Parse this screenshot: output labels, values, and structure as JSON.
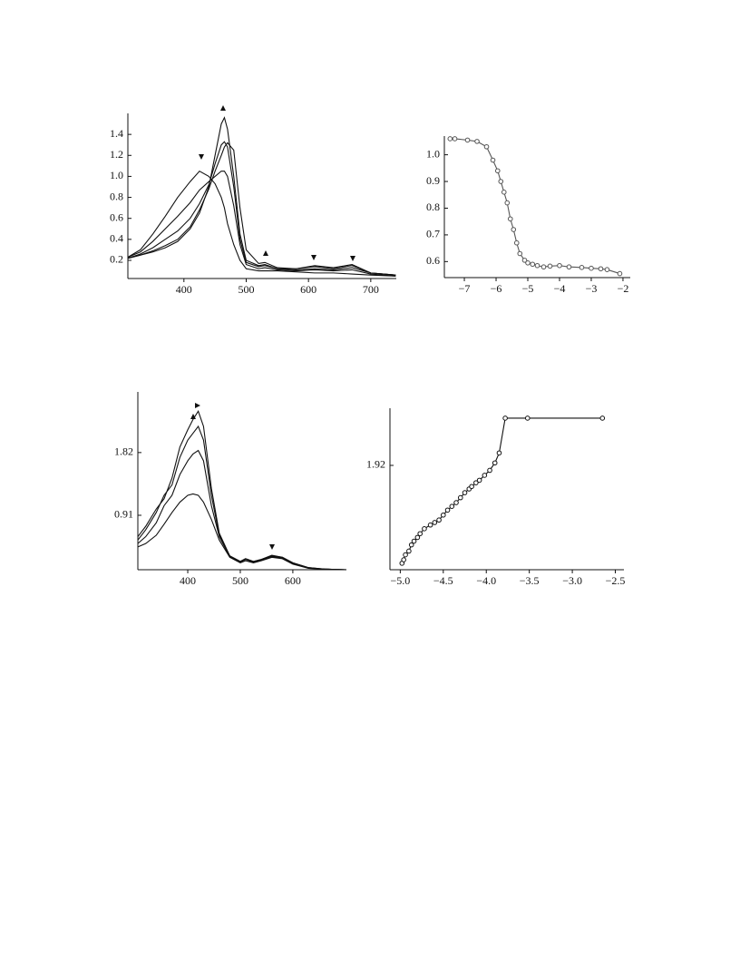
{
  "chart_data": [
    {
      "type": "line",
      "x": [
        310,
        330,
        350,
        370,
        390,
        410,
        425,
        440,
        450,
        460,
        465,
        470,
        480,
        490,
        500,
        520,
        530,
        550,
        580,
        610,
        640,
        670,
        700,
        740
      ],
      "series": [
        {
          "color": "#111111",
          "values": [
            0.23,
            0.3,
            0.45,
            0.62,
            0.8,
            0.95,
            1.05,
            1.0,
            0.93,
            0.8,
            0.7,
            0.55,
            0.35,
            0.2,
            0.12,
            0.1,
            0.1,
            0.1,
            0.09,
            0.08,
            0.08,
            0.07,
            0.06,
            0.05
          ]
        },
        {
          "color": "#111111",
          "values": [
            0.23,
            0.28,
            0.38,
            0.5,
            0.62,
            0.75,
            0.87,
            0.95,
            1.0,
            1.05,
            1.05,
            1.0,
            0.72,
            0.35,
            0.16,
            0.12,
            0.13,
            0.11,
            0.1,
            0.11,
            0.1,
            0.11,
            0.07,
            0.05
          ]
        },
        {
          "color": "#111111",
          "values": [
            0.22,
            0.26,
            0.32,
            0.4,
            0.48,
            0.6,
            0.74,
            0.92,
            1.12,
            1.3,
            1.33,
            1.28,
            0.9,
            0.4,
            0.18,
            0.14,
            0.15,
            0.12,
            0.11,
            0.12,
            0.11,
            0.13,
            0.08,
            0.06
          ]
        },
        {
          "color": "#111111",
          "values": [
            0.22,
            0.25,
            0.29,
            0.34,
            0.4,
            0.52,
            0.68,
            0.88,
            1.05,
            1.2,
            1.28,
            1.32,
            1.25,
            0.7,
            0.3,
            0.17,
            0.18,
            0.13,
            0.12,
            0.15,
            0.13,
            0.16,
            0.08,
            0.06
          ]
        },
        {
          "color": "#111111",
          "values": [
            0.22,
            0.25,
            0.28,
            0.32,
            0.38,
            0.5,
            0.65,
            0.9,
            1.2,
            1.5,
            1.56,
            1.45,
            1.0,
            0.45,
            0.2,
            0.15,
            0.16,
            0.12,
            0.12,
            0.14,
            0.12,
            0.15,
            0.08,
            0.06
          ]
        }
      ],
      "xlim": [
        310,
        741
      ],
      "xticks": [
        400,
        500,
        600,
        700
      ],
      "ylim": [
        0.027,
        1.6
      ],
      "yticks": [
        0.2,
        0.4,
        0.6,
        0.8,
        {
          "value": 1,
          "label": "1.0"
        },
        1.2,
        1.4
      ]
    },
    {
      "type": "line",
      "marker": "circle",
      "x": [
        -7.45,
        -7.3,
        -6.9,
        -6.6,
        -6.3,
        -6.1,
        -5.95,
        -5.85,
        -5.75,
        -5.65,
        -5.55,
        -5.45,
        -5.35,
        -5.25,
        -5.1,
        -5.0,
        -4.85,
        -4.7,
        -4.5,
        -4.3,
        -4.0,
        -3.7,
        -3.3,
        -3.0,
        -2.7,
        -2.5,
        -2.1
      ],
      "series": [
        {
          "color": "#555555",
          "values": [
            1.06,
            1.06,
            1.055,
            1.05,
            1.03,
            0.98,
            0.94,
            0.9,
            0.86,
            0.82,
            0.76,
            0.72,
            0.67,
            0.63,
            0.605,
            0.595,
            0.59,
            0.585,
            0.58,
            0.583,
            0.585,
            0.58,
            0.578,
            0.575,
            0.573,
            0.57,
            0.555
          ]
        }
      ],
      "xlim": [
        -7.63,
        -1.77
      ],
      "xticks": [
        {
          "value": -7,
          "label": "−7"
        },
        {
          "value": -6,
          "label": "−6"
        },
        {
          "value": -5,
          "label": "−5"
        },
        {
          "value": -4,
          "label": "−4"
        },
        {
          "value": -3,
          "label": "−3"
        },
        {
          "value": -2,
          "label": "−2"
        }
      ],
      "ylim": [
        0.54,
        1.07
      ],
      "yticks": [
        0.6,
        0.7,
        0.8,
        0.9,
        {
          "value": 1,
          "label": "1.0"
        }
      ]
    },
    {
      "type": "line",
      "x": [
        305,
        320,
        340,
        355,
        370,
        385,
        400,
        410,
        420,
        430,
        445,
        460,
        480,
        500,
        510,
        525,
        540,
        560,
        580,
        600,
        630,
        660,
        702
      ],
      "series": [
        {
          "color": "#111111",
          "values": [
            0.45,
            0.5,
            0.62,
            0.78,
            0.95,
            1.1,
            1.2,
            1.22,
            1.2,
            1.1,
            0.85,
            0.55,
            0.3,
            0.22,
            0.25,
            0.22,
            0.25,
            0.3,
            0.28,
            0.2,
            0.14,
            0.13,
            0.12
          ]
        },
        {
          "color": "#111111",
          "values": [
            0.5,
            0.6,
            0.8,
            1.05,
            1.2,
            1.5,
            1.7,
            1.8,
            1.85,
            1.7,
            1.05,
            0.6,
            0.31,
            0.23,
            0.27,
            0.23,
            0.26,
            0.31,
            0.29,
            0.21,
            0.14,
            0.13,
            0.12
          ]
        },
        {
          "color": "#111111",
          "values": [
            0.55,
            0.7,
            0.95,
            1.2,
            1.35,
            1.75,
            2.0,
            2.1,
            2.2,
            2.0,
            1.2,
            0.62,
            0.32,
            0.24,
            0.28,
            0.24,
            0.27,
            0.32,
            0.3,
            0.22,
            0.15,
            0.13,
            0.12
          ]
        },
        {
          "color": "#111111",
          "values": [
            0.6,
            0.75,
            1.0,
            1.15,
            1.45,
            1.9,
            2.15,
            2.3,
            2.42,
            2.2,
            1.3,
            0.65,
            0.32,
            0.24,
            0.28,
            0.24,
            0.27,
            0.33,
            0.3,
            0.22,
            0.15,
            0.13,
            0.12
          ]
        }
      ],
      "xlim": [
        305,
        702
      ],
      "xticks": [
        400,
        500,
        600
      ],
      "ylim": [
        0.12,
        2.7
      ],
      "yticks": [
        0.91,
        1.82
      ]
    },
    {
      "type": "line",
      "marker": "circle",
      "x": [
        -4.98,
        -4.96,
        -4.94,
        -4.9,
        -4.87,
        -4.84,
        -4.8,
        -4.77,
        -4.72,
        -4.65,
        -4.6,
        -4.55,
        -4.5,
        -4.45,
        -4.4,
        -4.35,
        -4.3,
        -4.25,
        -4.2,
        -4.17,
        -4.12,
        -4.08,
        -4.02,
        -3.96,
        -3.9,
        -3.85,
        -3.78,
        -3.52,
        -2.65
      ],
      "series": [
        {
          "color": "#111111",
          "values": [
            1.526,
            1.54,
            1.56,
            1.575,
            1.6,
            1.615,
            1.63,
            1.645,
            1.665,
            1.68,
            1.69,
            1.7,
            1.72,
            1.74,
            1.755,
            1.77,
            1.79,
            1.81,
            1.825,
            1.835,
            1.85,
            1.86,
            1.88,
            1.9,
            1.93,
            1.97,
            2.11,
            2.11,
            2.11
          ]
        }
      ],
      "xlim": [
        -5.12,
        -2.4
      ],
      "xticks": [
        {
          "value": -5,
          "label": "−5.0"
        },
        {
          "value": -4.5,
          "label": "−4.5"
        },
        {
          "value": -4,
          "label": "−4.0"
        },
        {
          "value": -3.5,
          "label": "−3.5"
        },
        {
          "value": -3,
          "label": "−3.0"
        },
        {
          "value": -2.5,
          "label": "−2.5"
        }
      ],
      "ylim": [
        1.5,
        2.15
      ],
      "yticks": [
        1.92
      ]
    }
  ]
}
